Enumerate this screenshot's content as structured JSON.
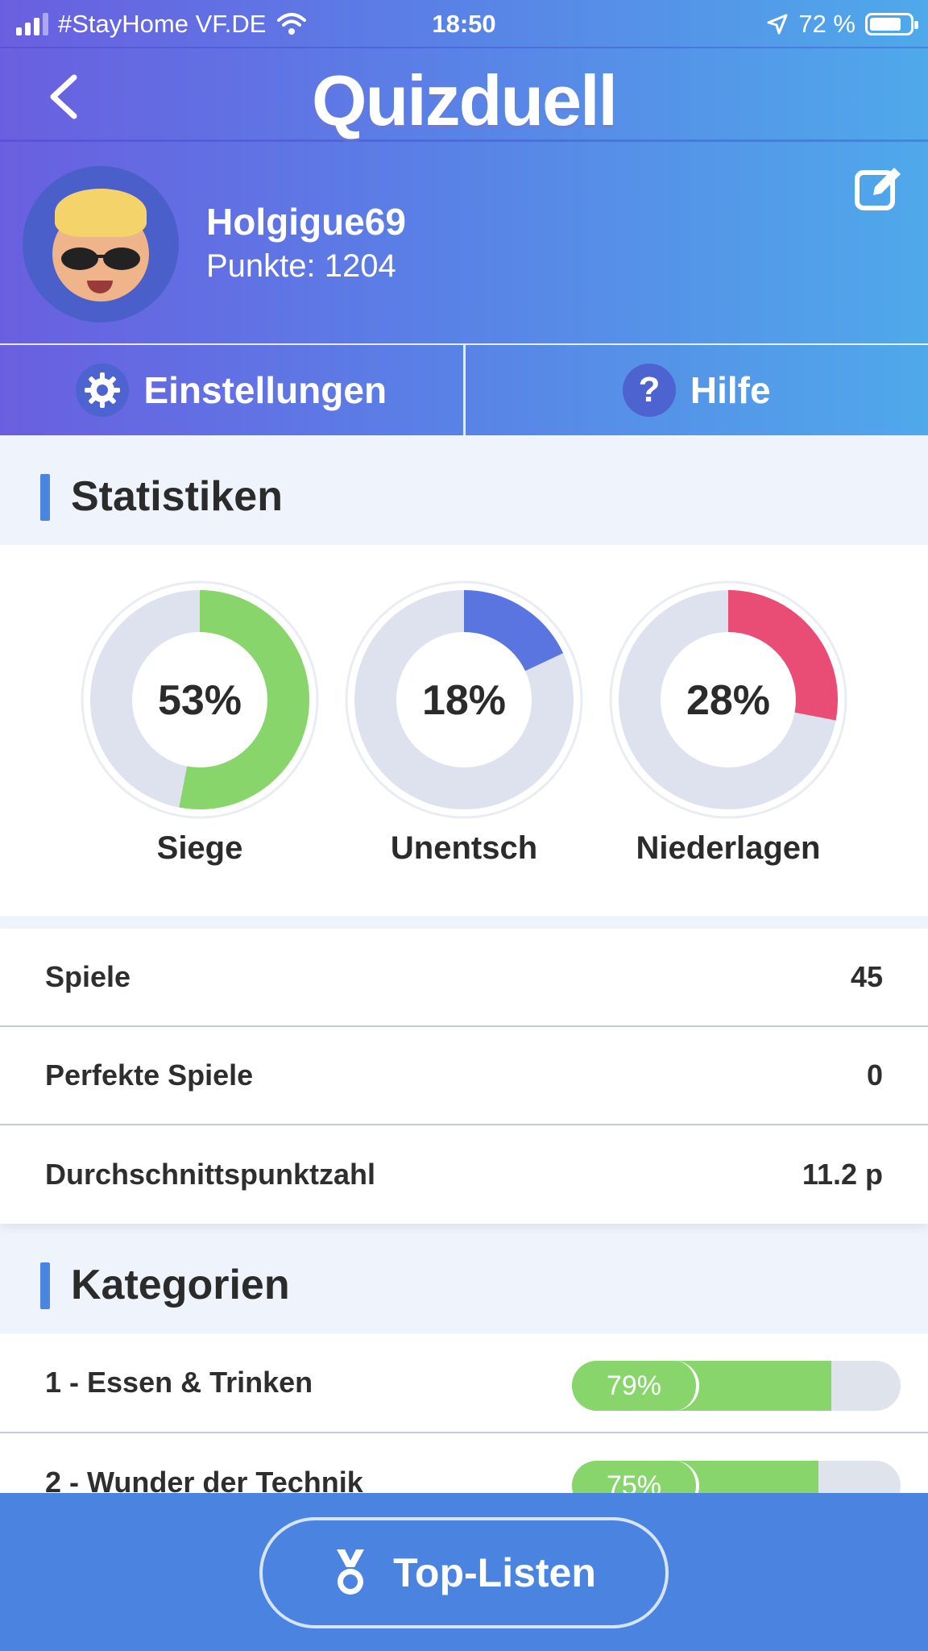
{
  "status_bar": {
    "carrier": "#StayHome VF.DE",
    "time": "18:50",
    "battery": "72 %"
  },
  "app": {
    "title": "Quizduell"
  },
  "profile": {
    "username": "Holgigue69",
    "points": "Punkte: 1204"
  },
  "actions": {
    "settings": "Einstellungen",
    "help": "Hilfe"
  },
  "statistics": {
    "title": "Statistiken",
    "donuts": [
      {
        "label": "Siege",
        "value": 53,
        "text": "53%",
        "color": "#88d66b"
      },
      {
        "label": "Unentsch",
        "value": 18,
        "text": "18%",
        "color": "#5a74e0"
      },
      {
        "label": "Niederlagen",
        "value": 28,
        "text": "28%",
        "color": "#e94d76"
      }
    ],
    "rows": [
      {
        "label": "Spiele",
        "value": "45"
      },
      {
        "label": "Perfekte Spiele",
        "value": "0"
      },
      {
        "label": "Durchschnittspunktzahl",
        "value": "11.2 p"
      }
    ]
  },
  "categories": {
    "title": "Kategorien",
    "items": [
      {
        "name": "1 - Essen & Trinken",
        "percent": 79,
        "text": "79%"
      },
      {
        "name": "2 - Wunder der Technik",
        "percent": 75,
        "text": "75%"
      }
    ]
  },
  "bottom": {
    "toplist_label": "Top-Listen"
  },
  "colors": {
    "track": "#dde2ee",
    "accent": "#4a86e0"
  }
}
